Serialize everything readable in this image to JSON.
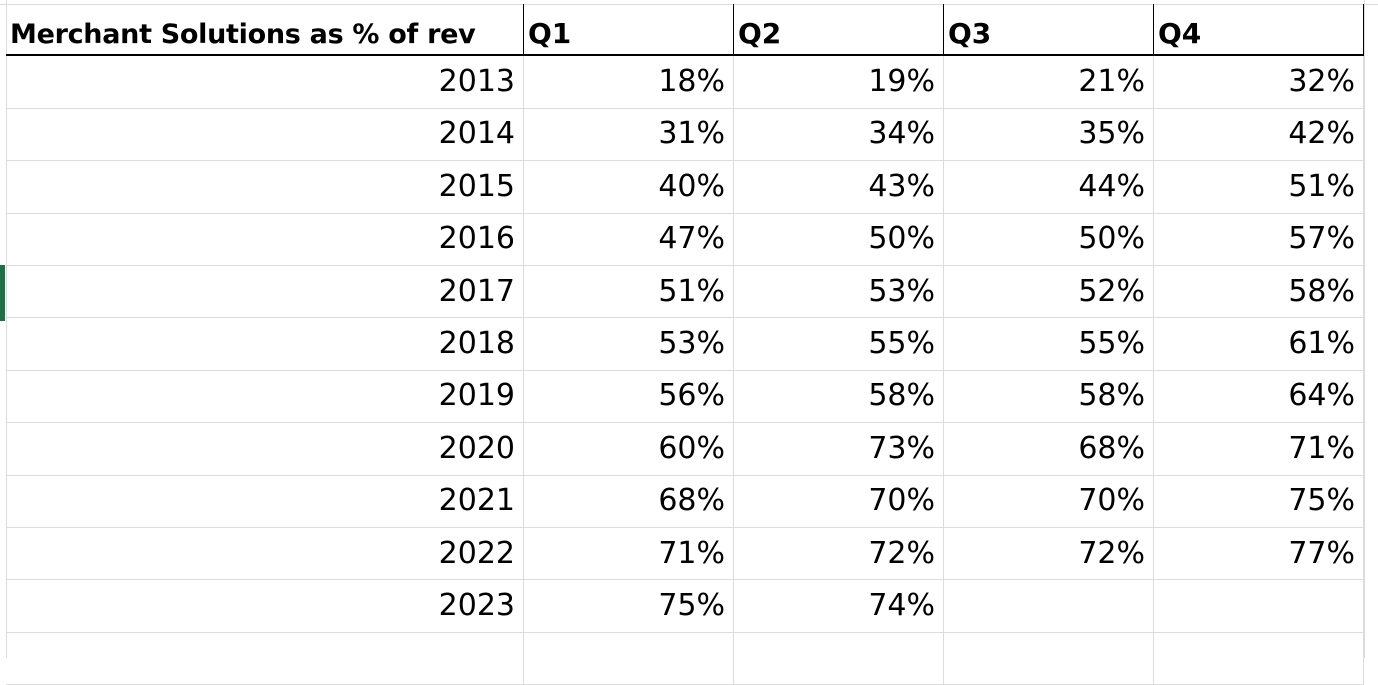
{
  "sheet": {
    "headers": [
      "Merchant Solutions as % of rev",
      "Q1",
      "Q2",
      "Q3",
      "Q4"
    ],
    "rows": [
      {
        "year": "2013",
        "q1": "18%",
        "q2": "19%",
        "q3": "21%",
        "q4": "32%"
      },
      {
        "year": "2014",
        "q1": "31%",
        "q2": "34%",
        "q3": "35%",
        "q4": "42%"
      },
      {
        "year": "2015",
        "q1": "40%",
        "q2": "43%",
        "q3": "44%",
        "q4": "51%"
      },
      {
        "year": "2016",
        "q1": "47%",
        "q2": "50%",
        "q3": "50%",
        "q4": "57%"
      },
      {
        "year": "2017",
        "q1": "51%",
        "q2": "53%",
        "q3": "52%",
        "q4": "58%"
      },
      {
        "year": "2018",
        "q1": "53%",
        "q2": "55%",
        "q3": "55%",
        "q4": "61%"
      },
      {
        "year": "2019",
        "q1": "56%",
        "q2": "58%",
        "q3": "58%",
        "q4": "64%"
      },
      {
        "year": "2020",
        "q1": "60%",
        "q2": "73%",
        "q3": "68%",
        "q4": "71%"
      },
      {
        "year": "2021",
        "q1": "68%",
        "q2": "70%",
        "q3": "70%",
        "q4": "75%"
      },
      {
        "year": "2022",
        "q1": "71%",
        "q2": "72%",
        "q3": "72%",
        "q4": "77%"
      },
      {
        "year": "2023",
        "q1": "75%",
        "q2": "74%",
        "q3": "",
        "q4": ""
      }
    ]
  },
  "colors": {
    "gridline": "#dcdcdc",
    "header_border": "#000000",
    "selection_accent": "#1e7145"
  }
}
